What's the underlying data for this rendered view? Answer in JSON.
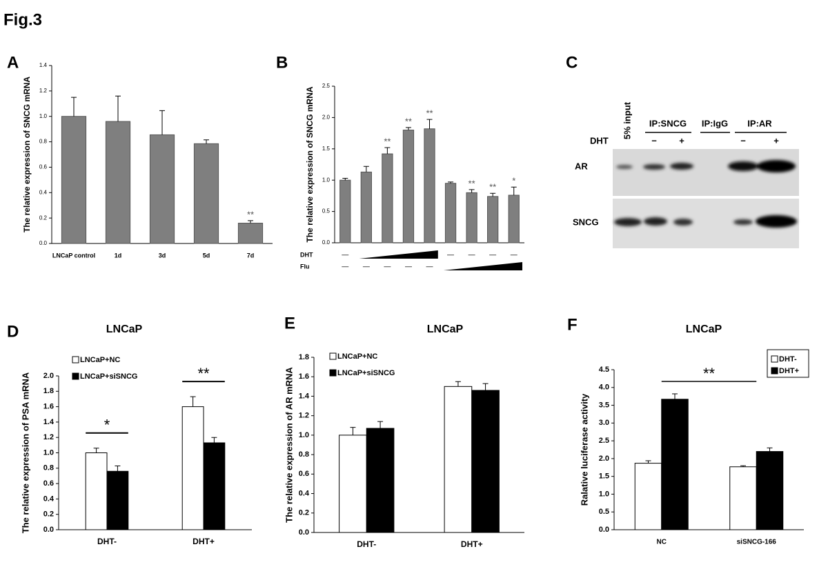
{
  "figure_title": "Fig.3",
  "chart_data": [
    {
      "type": "bar",
      "panel": "A",
      "ylabel": "The relative expression of SNCG mRNA",
      "categories": [
        "LNCaP control",
        "1d",
        "3d",
        "5d",
        "7d"
      ],
      "values": [
        1.0,
        0.96,
        0.855,
        0.785,
        0.16
      ],
      "errors": [
        0.15,
        0.2,
        0.19,
        0.03,
        0.02
      ],
      "significance": [
        null,
        null,
        null,
        null,
        "**"
      ],
      "color": "#7f7f7f",
      "ylim": [
        0,
        1.4
      ],
      "yticks": [
        {
          "value": 0,
          "label": "0.0"
        },
        0.2,
        0.4,
        0.6,
        0.8,
        {
          "value": 1,
          "label": "1.0"
        },
        1.2,
        1.4
      ]
    },
    {
      "type": "bar",
      "panel": "B",
      "ylabel": "The relative expression of SNCG mRNA",
      "categories": [
        null,
        null,
        null,
        null,
        null,
        null,
        null,
        null,
        null
      ],
      "values": [
        1.0,
        1.13,
        1.42,
        1.8,
        1.82,
        0.95,
        0.8,
        0.74,
        0.76
      ],
      "errors": [
        0.03,
        0.09,
        0.1,
        0.04,
        0.15,
        0.02,
        0.05,
        0.05,
        0.13
      ],
      "significance": [
        null,
        null,
        "**",
        "**",
        "**",
        null,
        "**",
        "**",
        "*"
      ],
      "color": "#7f7f7f",
      "ylim": [
        0,
        2.5
      ],
      "yticks": [
        {
          "value": 0,
          "label": "0.0"
        },
        0.5,
        {
          "value": 1,
          "label": "1.0"
        },
        1.5,
        {
          "value": 2,
          "label": "2.0"
        },
        2.5
      ],
      "treatments": [
        {
          "name": "DHT",
          "marks": [
            "—",
            null,
            null,
            null,
            null,
            "—",
            "—",
            "—",
            "—"
          ]
        },
        {
          "name": "Flu",
          "marks": [
            "—",
            "—",
            "—",
            "—",
            "—",
            null,
            null,
            null,
            null
          ]
        }
      ]
    },
    {
      "type": "grouped_bar",
      "panel": "D",
      "title": "LNCaP",
      "ylabel": "The relative expression of PSA mRNA",
      "categories": [
        "DHT-",
        "DHT+"
      ],
      "series": [
        {
          "name": "LNCaP+NC",
          "color": "#ffffff",
          "values": [
            1.0,
            1.6
          ],
          "errors": [
            0.06,
            0.13
          ]
        },
        {
          "name": "LNCaP+siSNCG",
          "color": "#000000",
          "values": [
            0.76,
            1.13
          ],
          "errors": [
            0.07,
            0.07
          ]
        }
      ],
      "significance": [
        "*",
        "**"
      ],
      "legend": "upper left",
      "ylim": [
        0,
        2.0
      ],
      "yticks": [
        {
          "value": 0,
          "label": "0.0"
        },
        0.2,
        0.4,
        0.6,
        0.8,
        {
          "value": 1,
          "label": "1.0"
        },
        1.2,
        1.4,
        1.6,
        1.8,
        {
          "value": 2,
          "label": "2.0"
        }
      ]
    },
    {
      "type": "grouped_bar",
      "panel": "E",
      "title": "LNCaP",
      "ylabel": "The relative expression of AR mRNA",
      "categories": [
        "DHT-",
        "DHT+"
      ],
      "series": [
        {
          "name": "LNCaP+NC",
          "color": "#ffffff",
          "values": [
            1.0,
            1.5
          ],
          "errors": [
            0.08,
            0.05
          ]
        },
        {
          "name": "LNCaP+siSNCG",
          "color": "#000000",
          "values": [
            1.07,
            1.46
          ],
          "errors": [
            0.07,
            0.07
          ]
        }
      ],
      "legend": "upper left",
      "ylim": [
        0,
        1.8
      ],
      "yticks": [
        {
          "value": 0,
          "label": "0.0"
        },
        0.2,
        0.4,
        0.6,
        0.8,
        {
          "value": 1,
          "label": "1.0"
        },
        1.2,
        1.4,
        1.6,
        1.8
      ]
    },
    {
      "type": "grouped_bar",
      "panel": "F",
      "title": "LNCaP",
      "ylabel": "Ralative luciferase activity",
      "categories": [
        "NC",
        "siSNCG-166"
      ],
      "series": [
        {
          "name": "DHT-",
          "color": "#ffffff",
          "values": [
            1.87,
            1.77
          ],
          "errors": [
            0.07,
            0.03
          ]
        },
        {
          "name": "DHT+",
          "color": "#000000",
          "values": [
            3.67,
            2.2
          ],
          "errors": [
            0.15,
            0.1
          ]
        }
      ],
      "comparison": "**",
      "legend": "upper right",
      "ylim": [
        0,
        4.5
      ],
      "yticks": [
        {
          "value": 0,
          "label": "0.0"
        },
        0.5,
        {
          "value": 1,
          "label": "1.0"
        },
        1.5,
        {
          "value": 2,
          "label": "2.0"
        },
        2.5,
        {
          "value": 3,
          "label": "3.0"
        },
        3.5,
        {
          "value": 4,
          "label": "4.0"
        },
        4.5
      ]
    }
  ],
  "blot": {
    "panel": "C",
    "lanes": [
      "5% input",
      "IP:SNCG",
      "IP:IgG",
      "IP:AR"
    ],
    "dht_label": "DHT",
    "dht_marks": [
      "−",
      "+",
      "−",
      "+"
    ],
    "rows": [
      "AR",
      "SNCG"
    ]
  }
}
